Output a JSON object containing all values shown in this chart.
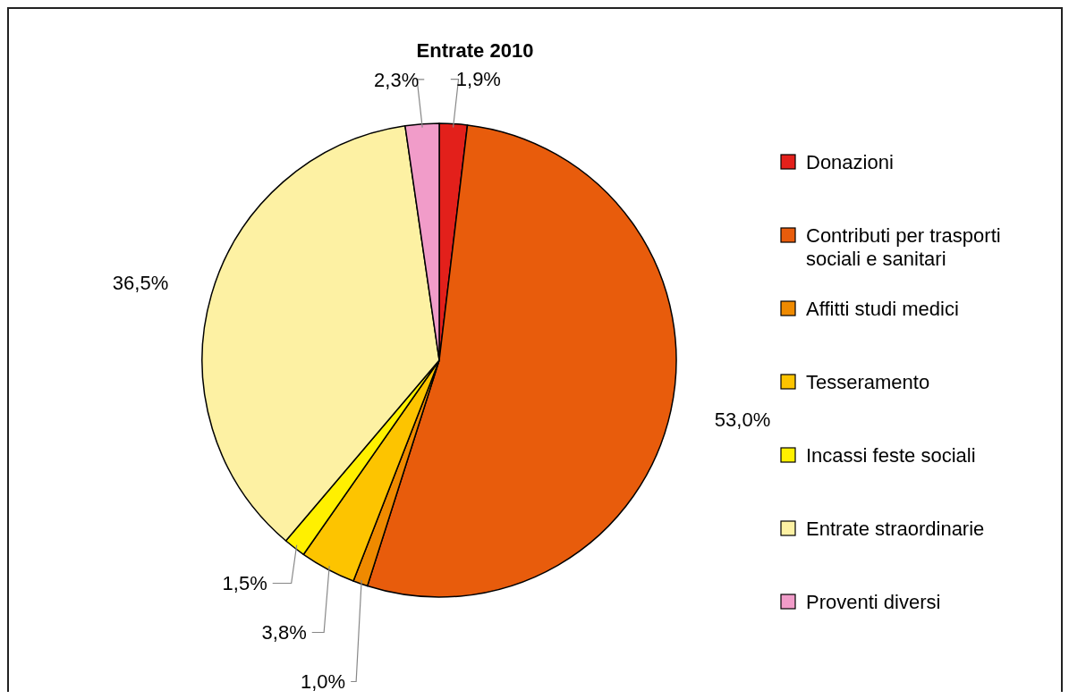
{
  "chart_data": {
    "type": "pie",
    "title": "Entrate 2010",
    "categories": [
      "Donazioni",
      "Contributi per trasporti sociali e sanitari",
      "Affitti studi medici",
      "Tesseramento",
      "Incassi feste sociali",
      "Entrate straordinarie",
      "Proventi diversi"
    ],
    "values": [
      1.9,
      53.0,
      1.0,
      3.8,
      1.5,
      36.5,
      2.3
    ],
    "colors": [
      "#e3201b",
      "#e85c0c",
      "#ef8a00",
      "#fdc400",
      "#fff000",
      "#fdf1a3",
      "#f19cc9"
    ],
    "value_labels": [
      "1,9%",
      "53,0%",
      "1,0%",
      "3,8%",
      "1,5%",
      "36,5%",
      "2,3%"
    ],
    "legend": "right"
  }
}
